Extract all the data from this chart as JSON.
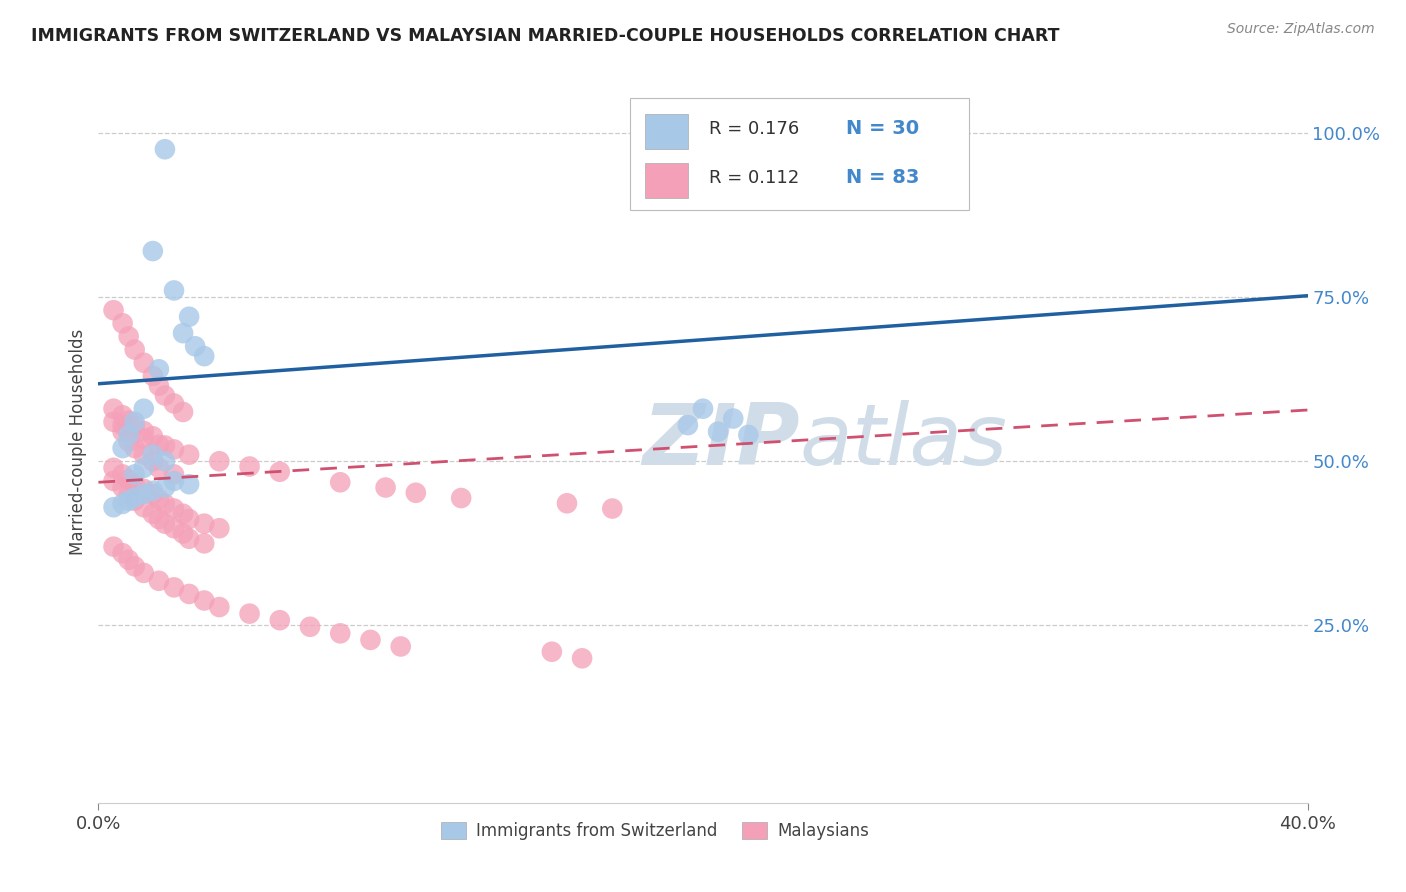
{
  "title": "IMMIGRANTS FROM SWITZERLAND VS MALAYSIAN MARRIED-COUPLE HOUSEHOLDS CORRELATION CHART",
  "source_text": "Source: ZipAtlas.com",
  "ylabel": "Married-couple Households",
  "legend_labels": [
    "Immigrants from Switzerland",
    "Malaysians"
  ],
  "blue_color": "#a8c8e8",
  "pink_color": "#f4a0b8",
  "blue_line_color": "#2060a0",
  "pink_line_color": "#d05070",
  "ytick_color": "#4488cc",
  "xtick_color": "#444444",
  "ylabel_color": "#444444",
  "title_color": "#222222",
  "source_color": "#888888",
  "watermark_color": "#d0dde8",
  "xlim": [
    0.0,
    0.4
  ],
  "ylim": [
    -0.02,
    1.08
  ],
  "y_ticks": [
    0.25,
    0.5,
    0.75,
    1.0
  ],
  "y_tick_labels": [
    "25.0%",
    "50.0%",
    "75.0%",
    "100.0%"
  ],
  "x_ticks": [
    0.0,
    0.4
  ],
  "x_tick_labels": [
    "0.0%",
    "40.0%"
  ],
  "blue_line_y0": 0.618,
  "blue_line_y1": 0.752,
  "pink_line_y0": 0.468,
  "pink_line_y1": 0.578,
  "blue_x": [
    0.022,
    0.018,
    0.025,
    0.03,
    0.028,
    0.032,
    0.035,
    0.02,
    0.015,
    0.012,
    0.01,
    0.008,
    0.018,
    0.022,
    0.015,
    0.012,
    0.025,
    0.03,
    0.022,
    0.018,
    0.015,
    0.012,
    0.01,
    0.008,
    0.005,
    0.2,
    0.21,
    0.195,
    0.205,
    0.215
  ],
  "blue_y": [
    0.975,
    0.82,
    0.76,
    0.72,
    0.695,
    0.675,
    0.66,
    0.64,
    0.58,
    0.56,
    0.54,
    0.52,
    0.51,
    0.5,
    0.49,
    0.48,
    0.47,
    0.465,
    0.46,
    0.455,
    0.45,
    0.445,
    0.44,
    0.435,
    0.43,
    0.58,
    0.565,
    0.555,
    0.545,
    0.54
  ],
  "pink_x": [
    0.005,
    0.008,
    0.01,
    0.012,
    0.015,
    0.018,
    0.02,
    0.022,
    0.025,
    0.028,
    0.005,
    0.008,
    0.01,
    0.012,
    0.015,
    0.018,
    0.02,
    0.025,
    0.005,
    0.008,
    0.01,
    0.012,
    0.015,
    0.018,
    0.02,
    0.022,
    0.025,
    0.028,
    0.03,
    0.035,
    0.005,
    0.008,
    0.01,
    0.012,
    0.015,
    0.018,
    0.02,
    0.022,
    0.025,
    0.028,
    0.03,
    0.035,
    0.04,
    0.005,
    0.008,
    0.01,
    0.012,
    0.015,
    0.02,
    0.025,
    0.03,
    0.035,
    0.04,
    0.05,
    0.06,
    0.07,
    0.08,
    0.09,
    0.1,
    0.15,
    0.16,
    0.008,
    0.01,
    0.015,
    0.02,
    0.025,
    0.03,
    0.04,
    0.05,
    0.06,
    0.08,
    0.095,
    0.105,
    0.12,
    0.155,
    0.17,
    0.005,
    0.008,
    0.01,
    0.012,
    0.015,
    0.018,
    0.022
  ],
  "pink_y": [
    0.73,
    0.71,
    0.69,
    0.67,
    0.65,
    0.63,
    0.615,
    0.6,
    0.588,
    0.575,
    0.56,
    0.545,
    0.53,
    0.52,
    0.51,
    0.5,
    0.49,
    0.48,
    0.47,
    0.46,
    0.45,
    0.44,
    0.43,
    0.42,
    0.412,
    0.405,
    0.398,
    0.39,
    0.382,
    0.375,
    0.49,
    0.48,
    0.472,
    0.465,
    0.458,
    0.45,
    0.442,
    0.435,
    0.428,
    0.42,
    0.412,
    0.405,
    0.398,
    0.37,
    0.36,
    0.35,
    0.34,
    0.33,
    0.318,
    0.308,
    0.298,
    0.288,
    0.278,
    0.268,
    0.258,
    0.248,
    0.238,
    0.228,
    0.218,
    0.21,
    0.2,
    0.555,
    0.545,
    0.535,
    0.525,
    0.518,
    0.51,
    0.5,
    0.492,
    0.484,
    0.468,
    0.46,
    0.452,
    0.444,
    0.436,
    0.428,
    0.58,
    0.57,
    0.562,
    0.554,
    0.546,
    0.538,
    0.524
  ]
}
